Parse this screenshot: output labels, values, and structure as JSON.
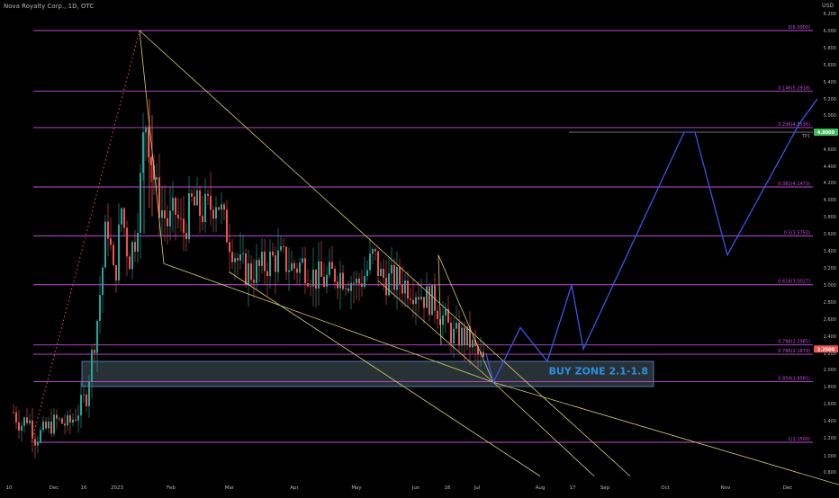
{
  "header": {
    "symbol": "Nova Royalty Corp.",
    "interval": "1D",
    "exchange": "OTC",
    "sep": ", "
  },
  "currency": "USD",
  "chart_data": {
    "type": "candlestick",
    "title": "",
    "colors": {
      "up": "#26a69a",
      "down": "#ef5350",
      "fib": "#c34bd9",
      "trend": "#d9cf6b",
      "projection": "#3a55e8",
      "zone_fill": "#2f3a3f",
      "zone_stroke": "#5d8fd8",
      "zone_text": "#2b8fe0",
      "tp_badge": "#3dbb5d",
      "price_badge": "#ef5350"
    },
    "x_labels": [
      "10",
      "Dec",
      "16",
      "2023",
      "Feb",
      "Mar",
      "Apr",
      "May",
      "Jun",
      "16",
      "Jul",
      "Aug",
      "17",
      "Sep",
      "Oct",
      "Nov",
      "Dec"
    ],
    "y_ticks": [
      "6.200",
      "6.000",
      "5.800",
      "5.600",
      "5.400",
      "5.200",
      "5.000",
      "4.800",
      "4.600",
      "4.400",
      "4.200",
      "4.000",
      "3.800",
      "3.600",
      "3.400",
      "3.200",
      "3.000",
      "2.800",
      "2.600",
      "2.400",
      "2.200",
      "2.000",
      "1.800",
      "1.600",
      "1.400",
      "1.200",
      "1.000",
      "0.800"
    ],
    "ylim": [
      0.7,
      6.35
    ],
    "fib_levels": [
      {
        "price": 6.0,
        "label": "0(6.0000)"
      },
      {
        "price": 5.2918,
        "label": "0.146(5.2918)"
      },
      {
        "price": 4.8536,
        "label": "0.236(4.8536)"
      },
      {
        "price": 4.1473,
        "label": "0.382(4.1473)"
      },
      {
        "price": 3.575,
        "label": "0.5(3.5750)"
      },
      {
        "price": 3.0027,
        "label": "0.618(3.0027)"
      },
      {
        "price": 2.2985,
        "label": "0.786(2.2985)"
      },
      {
        "price": 2.1879,
        "label": "0.786(2.1879)"
      },
      {
        "price": 1.8581,
        "label": "0.854(1.8581)"
      },
      {
        "price": 1.15,
        "label": "1(1.1500)"
      }
    ],
    "tp": {
      "price": 4.8,
      "label": "TP1",
      "badge": "4.8000"
    },
    "current_price": {
      "price": 2.25,
      "badge": "2.2500"
    },
    "buy_zone": {
      "label": "BUY ZONE 2.1-1.8",
      "top": 2.1,
      "bottom": 1.8
    },
    "projection_path": [
      [
        540,
        2.2
      ],
      [
        548,
        1.85
      ],
      [
        578,
        2.5
      ],
      [
        608,
        2.1
      ],
      [
        635,
        3.0
      ],
      [
        648,
        2.25
      ],
      [
        760,
        4.8
      ],
      [
        772,
        4.8
      ],
      [
        808,
        3.35
      ],
      [
        888,
        4.9
      ],
      [
        908,
        5.2
      ]
    ],
    "trendlines": [
      [
        [
          155,
          6.0
        ],
        [
          700,
          0.75
        ]
      ],
      [
        [
          155,
          6.0
        ],
        [
          182,
          3.25
        ]
      ],
      [
        [
          182,
          3.25
        ],
        [
          548,
          1.85
        ]
      ],
      [
        [
          255,
          3.15
        ],
        [
          600,
          0.75
        ]
      ],
      [
        [
          548,
          1.85
        ],
        [
          932,
          0.65
        ]
      ],
      [
        [
          420,
          3.05
        ],
        [
          548,
          1.85
        ]
      ],
      [
        [
          487,
          3.35
        ],
        [
          548,
          1.85
        ]
      ],
      [
        [
          487,
          3.35
        ],
        [
          490,
          2.3
        ]
      ],
      [
        [
          548,
          1.85
        ],
        [
          660,
          0.75
        ]
      ]
    ],
    "rally_dots": [
      [
        35,
        1.15
      ],
      [
        155,
        6.0
      ]
    ],
    "candle_anchors": [
      [
        14,
        1.5
      ],
      [
        22,
        1.35
      ],
      [
        30,
        1.45
      ],
      [
        38,
        1.2
      ],
      [
        50,
        1.3
      ],
      [
        62,
        1.4
      ],
      [
        75,
        1.35
      ],
      [
        85,
        1.5
      ],
      [
        95,
        1.7
      ],
      [
        100,
        2.1
      ],
      [
        106,
        2.5
      ],
      [
        112,
        3.1
      ],
      [
        118,
        3.8
      ],
      [
        126,
        3.0
      ],
      [
        134,
        3.9
      ],
      [
        142,
        3.3
      ],
      [
        150,
        3.6
      ],
      [
        155,
        4.2
      ],
      [
        160,
        5.0
      ],
      [
        166,
        4.6
      ],
      [
        172,
        4.1
      ],
      [
        178,
        3.9
      ],
      [
        186,
        3.7
      ],
      [
        194,
        3.85
      ],
      [
        202,
        3.6
      ],
      [
        212,
        3.95
      ],
      [
        222,
        3.85
      ],
      [
        232,
        3.9
      ],
      [
        240,
        4.05
      ],
      [
        248,
        3.7
      ],
      [
        256,
        3.5
      ],
      [
        266,
        3.2
      ],
      [
        278,
        3.15
      ],
      [
        290,
        3.2
      ],
      [
        300,
        3.3
      ],
      [
        312,
        3.3
      ],
      [
        324,
        3.2
      ],
      [
        336,
        3.25
      ],
      [
        348,
        3.1
      ],
      [
        360,
        3.05
      ],
      [
        372,
        3.15
      ],
      [
        384,
        3.1
      ],
      [
        396,
        3.0
      ],
      [
        406,
        3.15
      ],
      [
        414,
        3.35
      ],
      [
        422,
        3.1
      ],
      [
        432,
        3.05
      ],
      [
        442,
        3.05
      ],
      [
        452,
        3.0
      ],
      [
        462,
        2.95
      ],
      [
        472,
        2.85
      ],
      [
        482,
        2.8
      ],
      [
        492,
        2.6
      ],
      [
        502,
        2.4
      ],
      [
        512,
        2.4
      ],
      [
        520,
        2.35
      ],
      [
        528,
        2.2
      ],
      [
        536,
        2.1
      ]
    ]
  }
}
